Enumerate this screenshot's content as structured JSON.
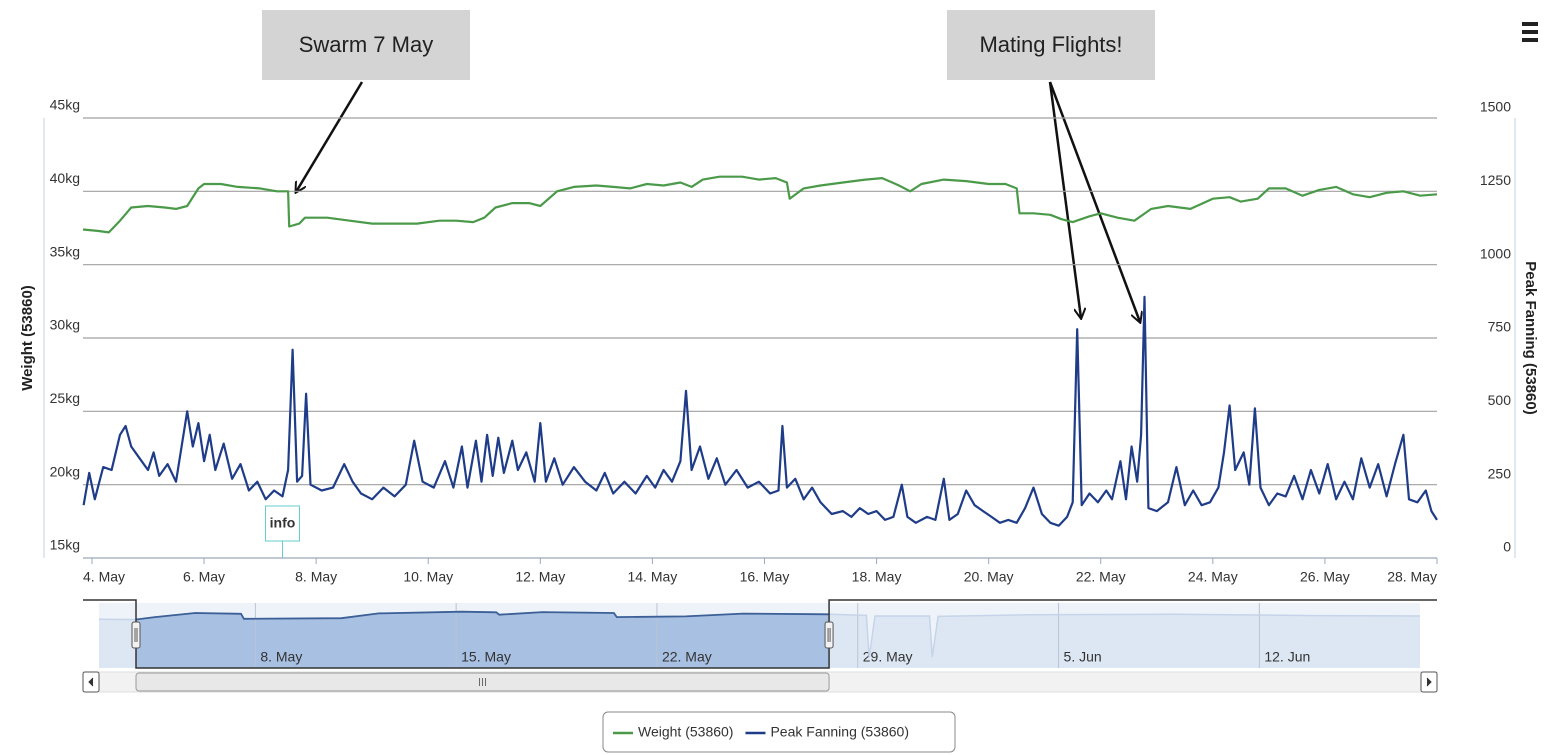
{
  "chart_data": {
    "type": "line",
    "annotations": [
      {
        "text": "Swarm 7 May"
      },
      {
        "text": "Mating Flights!"
      }
    ],
    "flags": [
      {
        "x": 7.4,
        "title": "info"
      }
    ],
    "y_label": "Weight (53860)",
    "y2_label": "Peak Fanning (53860)",
    "xlim": [
      3.84,
      28.0
    ],
    "xticks": [
      {
        "value": 4,
        "label": "4. May"
      },
      {
        "value": 6,
        "label": "6. May"
      },
      {
        "value": 8,
        "label": "8. May"
      },
      {
        "value": 10,
        "label": "10. May"
      },
      {
        "value": 12,
        "label": "12. May"
      },
      {
        "value": 14,
        "label": "14. May"
      },
      {
        "value": 16,
        "label": "16. May"
      },
      {
        "value": 18,
        "label": "18. May"
      },
      {
        "value": 20,
        "label": "20. May"
      },
      {
        "value": 22,
        "label": "22. May"
      },
      {
        "value": 24,
        "label": "24. May"
      },
      {
        "value": 26,
        "label": "26. May"
      },
      {
        "value": 28,
        "label": "28. May"
      }
    ],
    "ylim": [
      15,
      45
    ],
    "yticks": [
      {
        "value": 15,
        "label": "15kg"
      },
      {
        "value": 20,
        "label": "20kg"
      },
      {
        "value": 25,
        "label": "25kg"
      },
      {
        "value": 30,
        "label": "30kg"
      },
      {
        "value": 35,
        "label": "35kg"
      },
      {
        "value": 40,
        "label": "40kg"
      },
      {
        "value": 45,
        "label": "45kg"
      }
    ],
    "y2lim": [
      0,
      1500
    ],
    "y2ticks": [
      0,
      250,
      500,
      750,
      1000,
      1250,
      1500
    ],
    "grid": true,
    "legend": "bottom",
    "series": [
      {
        "name": "Weight (53860)",
        "color": "#4a9a4a",
        "axis": "y",
        "x": [
          3.84,
          4.1,
          4.3,
          4.5,
          4.7,
          5.0,
          5.3,
          5.5,
          5.7,
          5.9,
          6.0,
          6.3,
          6.6,
          7.0,
          7.3,
          7.5,
          7.52,
          7.7,
          7.8,
          8.2,
          8.6,
          9.0,
          9.4,
          9.8,
          10.2,
          10.5,
          10.8,
          11.0,
          11.2,
          11.5,
          11.8,
          12.0,
          12.3,
          12.6,
          13.0,
          13.3,
          13.6,
          13.9,
          14.2,
          14.5,
          14.7,
          14.9,
          15.2,
          15.6,
          15.9,
          16.2,
          16.4,
          16.45,
          16.7,
          17.0,
          17.4,
          17.8,
          18.1,
          18.4,
          18.6,
          18.8,
          19.2,
          19.6,
          20.0,
          20.3,
          20.5,
          20.55,
          20.8,
          21.1,
          21.3,
          21.5,
          21.8,
          22.0,
          22.3,
          22.6,
          22.9,
          23.2,
          23.6,
          24.0,
          24.3,
          24.5,
          24.8,
          25.0,
          25.3,
          25.6,
          25.9,
          26.2,
          26.5,
          26.8,
          27.1,
          27.4,
          27.7,
          28.0
        ],
        "values": [
          37.4,
          37.3,
          37.2,
          38.0,
          38.9,
          39.0,
          38.9,
          38.8,
          39.0,
          40.2,
          40.5,
          40.5,
          40.3,
          40.2,
          40.0,
          40.0,
          37.6,
          37.8,
          38.2,
          38.2,
          38.0,
          37.8,
          37.8,
          37.8,
          38.0,
          38.0,
          37.9,
          38.2,
          38.9,
          39.2,
          39.2,
          39.0,
          40.0,
          40.3,
          40.4,
          40.3,
          40.2,
          40.5,
          40.4,
          40.6,
          40.3,
          40.8,
          41.0,
          41.0,
          40.8,
          40.9,
          40.6,
          39.5,
          40.2,
          40.4,
          40.6,
          40.8,
          40.9,
          40.4,
          40.0,
          40.5,
          40.8,
          40.7,
          40.5,
          40.5,
          40.2,
          38.5,
          38.5,
          38.4,
          38.1,
          37.9,
          38.3,
          38.5,
          38.2,
          38.0,
          38.8,
          39.0,
          38.8,
          39.5,
          39.6,
          39.3,
          39.5,
          40.2,
          40.2,
          39.7,
          40.1,
          40.3,
          39.8,
          39.6,
          39.9,
          40.0,
          39.7,
          39.8
        ]
      },
      {
        "name": "Peak Fanning (53860)",
        "color": "#1f3c88",
        "axis": "y2",
        "x": [
          3.85,
          3.95,
          4.05,
          4.2,
          4.35,
          4.5,
          4.6,
          4.7,
          4.85,
          5.0,
          5.1,
          5.2,
          5.35,
          5.5,
          5.6,
          5.7,
          5.8,
          5.9,
          6.0,
          6.1,
          6.2,
          6.35,
          6.5,
          6.65,
          6.8,
          6.95,
          7.1,
          7.25,
          7.4,
          7.5,
          7.58,
          7.66,
          7.75,
          7.82,
          7.9,
          8.1,
          8.3,
          8.5,
          8.65,
          8.8,
          9.0,
          9.2,
          9.4,
          9.6,
          9.75,
          9.9,
          10.1,
          10.3,
          10.45,
          10.6,
          10.7,
          10.85,
          10.95,
          11.05,
          11.15,
          11.25,
          11.35,
          11.5,
          11.6,
          11.75,
          11.9,
          12.0,
          12.1,
          12.25,
          12.4,
          12.6,
          12.8,
          13.0,
          13.15,
          13.3,
          13.5,
          13.7,
          13.9,
          14.05,
          14.2,
          14.35,
          14.5,
          14.6,
          14.7,
          14.85,
          15.0,
          15.15,
          15.3,
          15.5,
          15.7,
          15.9,
          16.1,
          16.25,
          16.32,
          16.4,
          16.55,
          16.7,
          16.85,
          17.0,
          17.2,
          17.4,
          17.55,
          17.7,
          17.85,
          18.0,
          18.15,
          18.3,
          18.45,
          18.55,
          18.7,
          18.9,
          19.05,
          19.2,
          19.3,
          19.45,
          19.6,
          19.75,
          19.9,
          20.05,
          20.2,
          20.35,
          20.5,
          20.65,
          20.8,
          20.95,
          21.1,
          21.25,
          21.4,
          21.5,
          21.58,
          21.66,
          21.8,
          21.95,
          22.1,
          22.2,
          22.35,
          22.45,
          22.55,
          22.65,
          22.72,
          22.78,
          22.85,
          23.0,
          23.2,
          23.35,
          23.5,
          23.65,
          23.8,
          23.95,
          24.1,
          24.2,
          24.3,
          24.4,
          24.55,
          24.65,
          24.75,
          24.85,
          25.0,
          25.15,
          25.3,
          25.45,
          25.6,
          25.75,
          25.9,
          26.05,
          26.2,
          26.35,
          26.5,
          26.65,
          26.8,
          26.95,
          27.1,
          27.25,
          27.4,
          27.5,
          27.65,
          27.8,
          27.9,
          28.0
        ],
        "values": [
          180,
          290,
          200,
          310,
          300,
          420,
          450,
          380,
          340,
          300,
          360,
          280,
          320,
          260,
          380,
          500,
          380,
          460,
          330,
          420,
          300,
          390,
          270,
          320,
          230,
          260,
          200,
          230,
          210,
          300,
          710,
          260,
          280,
          560,
          250,
          230,
          240,
          320,
          260,
          220,
          200,
          240,
          210,
          250,
          400,
          260,
          240,
          330,
          240,
          380,
          240,
          400,
          260,
          420,
          280,
          410,
          290,
          400,
          300,
          360,
          260,
          460,
          260,
          340,
          250,
          310,
          260,
          230,
          290,
          220,
          260,
          220,
          280,
          240,
          300,
          260,
          330,
          570,
          300,
          380,
          270,
          340,
          250,
          300,
          240,
          260,
          220,
          230,
          450,
          240,
          270,
          200,
          240,
          190,
          150,
          160,
          140,
          170,
          150,
          160,
          130,
          140,
          250,
          140,
          120,
          140,
          130,
          270,
          130,
          150,
          230,
          180,
          160,
          140,
          120,
          130,
          120,
          170,
          240,
          150,
          120,
          110,
          140,
          190,
          780,
          180,
          220,
          190,
          230,
          200,
          330,
          200,
          380,
          260,
          420,
          890,
          170,
          160,
          190,
          310,
          180,
          230,
          180,
          190,
          240,
          360,
          520,
          300,
          360,
          250,
          510,
          240,
          180,
          220,
          210,
          280,
          200,
          300,
          220,
          320,
          200,
          260,
          200,
          340,
          240,
          320,
          210,
          320,
          420,
          200,
          190,
          230,
          160,
          130
        ]
      }
    ],
    "navigator": {
      "color": "#6a8fc4",
      "xlim": [
        2.55,
        48.6
      ],
      "xticks": [
        {
          "value": 8,
          "label": "8. May"
        },
        {
          "value": 15,
          "label": "15. May"
        },
        {
          "value": 22,
          "label": "22. May"
        },
        {
          "value": 29,
          "label": "29. May"
        },
        {
          "value": 36,
          "label": "5. Jun"
        },
        {
          "value": 43,
          "label": "12. Jun"
        }
      ],
      "x": [
        2.55,
        3.84,
        4.5,
        5.9,
        7.5,
        7.6,
        11,
        12.3,
        15.2,
        16.4,
        16.5,
        18,
        20.5,
        20.6,
        23,
        25,
        28,
        29.3,
        29.4,
        29.6,
        31.5,
        31.6,
        31.8,
        35,
        40,
        45,
        48.6
      ],
      "values": [
        37.5,
        37.4,
        38.5,
        40.4,
        40.0,
        37.7,
        38.0,
        40.2,
        41.0,
        40.7,
        39.6,
        40.8,
        40.4,
        38.5,
        38.8,
        40.1,
        39.8,
        39.3,
        20,
        39.0,
        39.0,
        20,
        38.8,
        39.6,
        39.8,
        39.2,
        39.0
      ]
    }
  }
}
